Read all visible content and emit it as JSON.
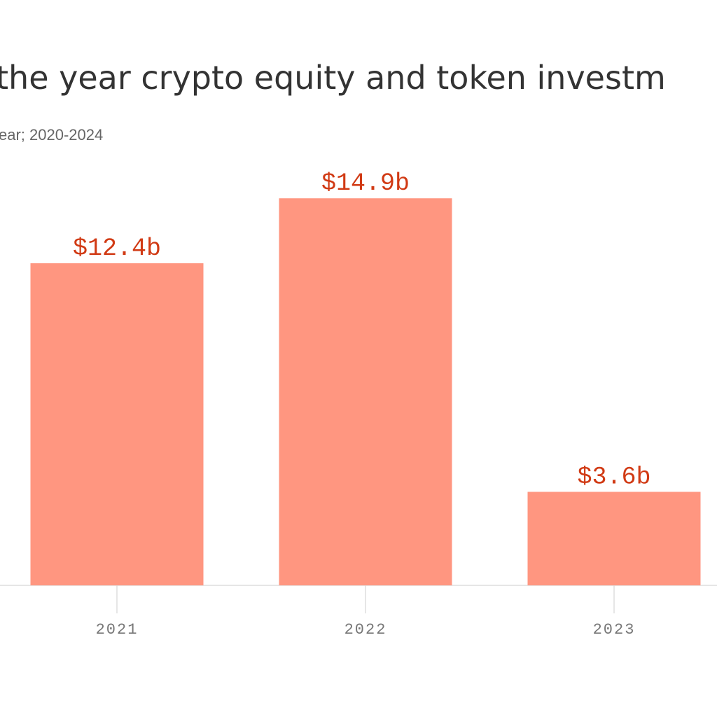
{
  "chart_data": {
    "type": "bar",
    "title": "the year crypto equity and token investm",
    "subtitle": "ear; 2020-2024",
    "categories": [
      "2021",
      "2022",
      "2023"
    ],
    "values": [
      12.4,
      14.9,
      3.6
    ],
    "value_labels": [
      "$12.4b",
      "$14.9b",
      "$3.6b"
    ],
    "color": "#ff9680",
    "label_color": "#d13a14"
  }
}
